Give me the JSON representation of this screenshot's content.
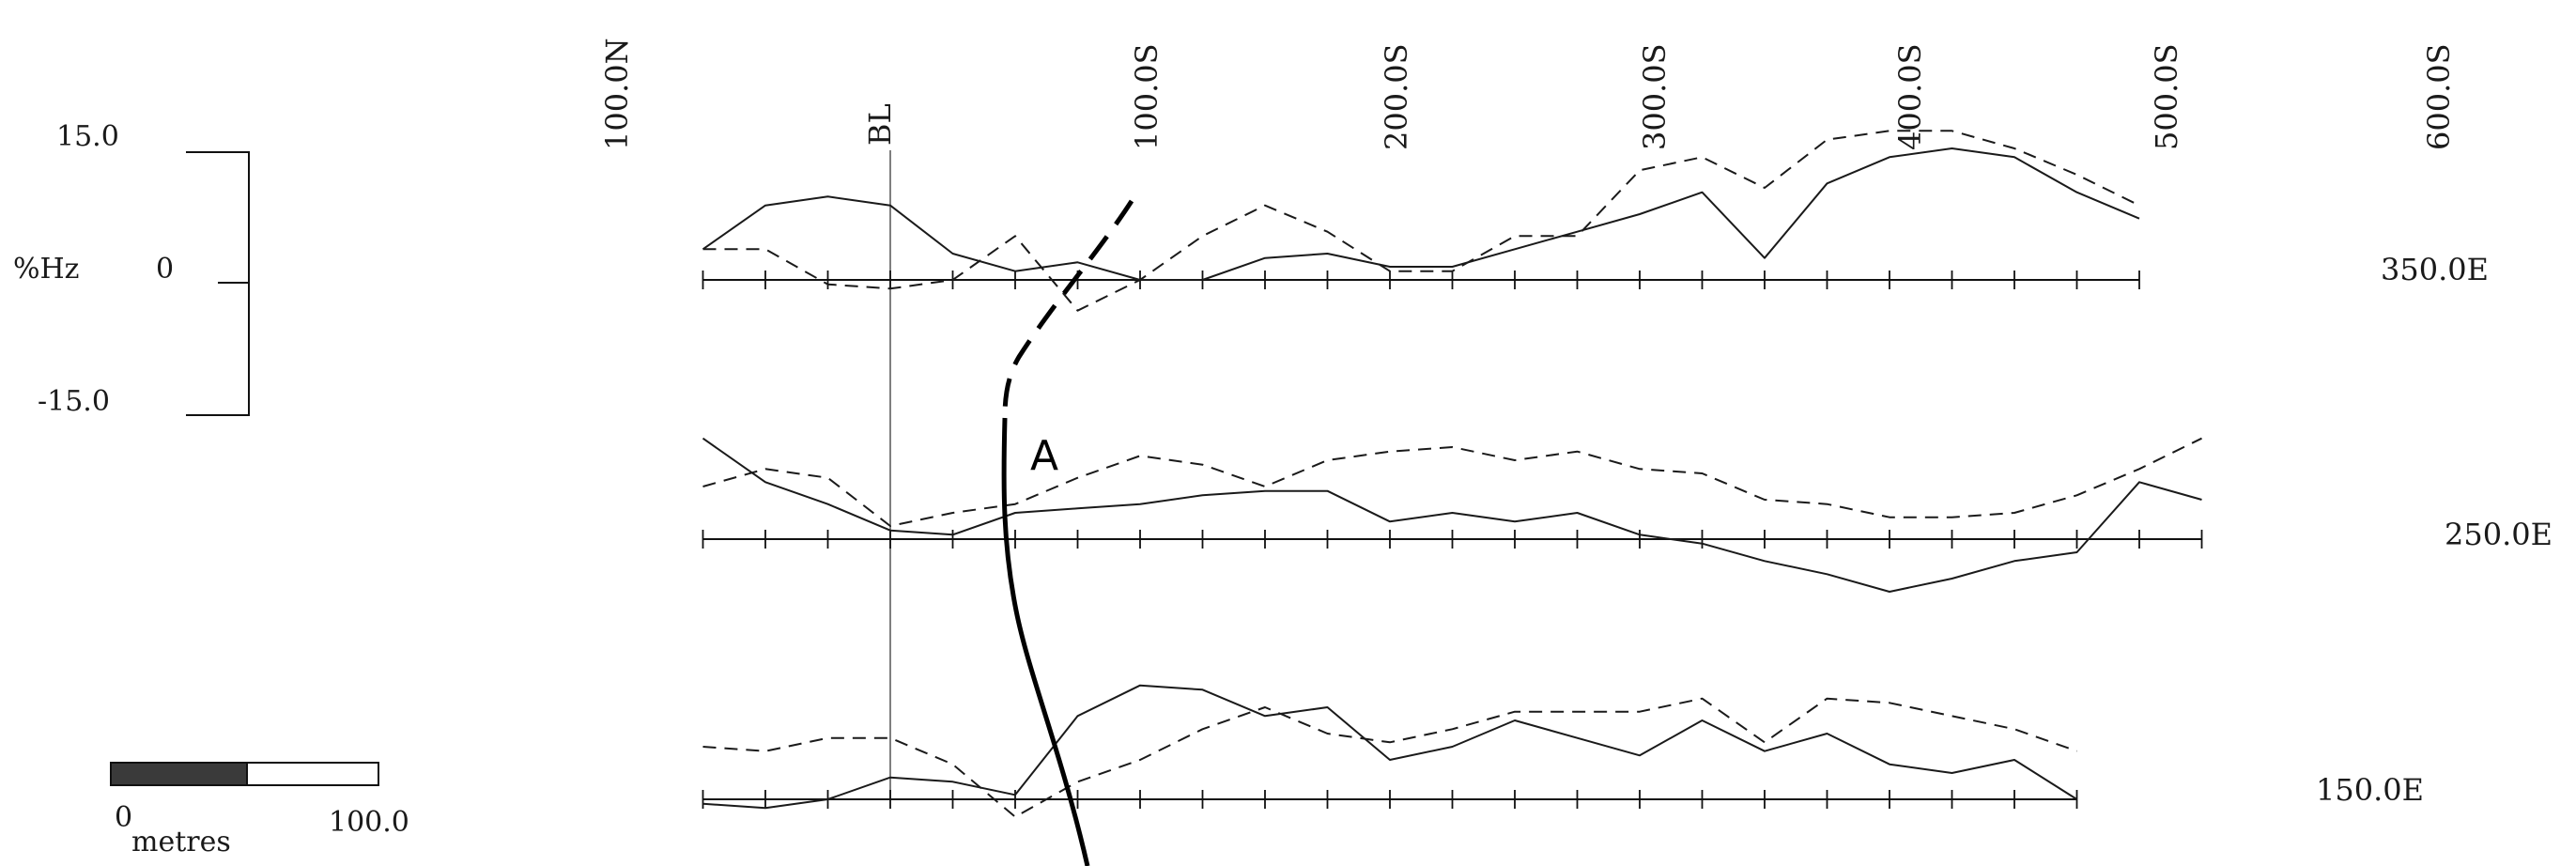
{
  "chart_data": {
    "type": "line",
    "y_scale": {
      "unit_label": "%Hz",
      "top_label": "15.0",
      "zero_label": "0",
      "bottom_label": "-15.0",
      "ylim": [
        -15,
        15
      ]
    },
    "station_labels": [
      "100.0N",
      "BL",
      "100.0S",
      "200.0S",
      "300.0S",
      "400.0S",
      "500.0S",
      "600.0S"
    ],
    "scale_bar": {
      "min_label": "0",
      "max_label": "100.0",
      "unit_label": "metres",
      "length_m": 100
    },
    "interpretation": {
      "label": "A"
    },
    "profiles": [
      {
        "line_label": "350.0E",
        "line_e": 350,
        "series": [
          {
            "style": "solid",
            "x": [
              -150,
              -100,
              -50,
              0,
              50,
              100,
              150,
              200,
              250,
              300,
              350,
              400,
              450,
              500,
              550,
              600,
              650,
              700,
              750,
              800,
              850,
              900,
              950,
              1000
            ],
            "y": [
              3.5,
              8.5,
              9.5,
              8.5,
              3,
              1,
              2,
              0,
              0,
              2.5,
              3,
              1.5,
              1.5,
              3.5,
              5.5,
              7.5,
              10,
              2.5,
              11,
              14,
              15,
              14,
              10,
              7
            ]
          },
          {
            "style": "dashed",
            "x": [
              -150,
              -100,
              -50,
              0,
              50,
              100,
              150,
              200,
              250,
              300,
              350,
              400,
              450,
              500,
              550,
              600,
              650,
              700,
              750,
              800,
              850,
              900,
              950,
              1000
            ],
            "y": [
              3.5,
              3.5,
              -0.5,
              -1,
              0,
              5,
              -3.5,
              0,
              5,
              8.5,
              5.5,
              1,
              1,
              5,
              5,
              12.5,
              14,
              10.5,
              16,
              17,
              17,
              15,
              12,
              8.5
            ]
          }
        ]
      },
      {
        "line_label": "250.0E",
        "line_e": 250,
        "series": [
          {
            "style": "solid",
            "x": [
              -150,
              -100,
              -50,
              0,
              50,
              100,
              150,
              200,
              250,
              300,
              350,
              400,
              450,
              500,
              550,
              600,
              650,
              700,
              750,
              800,
              850,
              900,
              950,
              1000,
              1050
            ],
            "y": [
              11.5,
              6.5,
              4,
              1,
              0.5,
              3,
              3.5,
              4,
              5,
              5.5,
              5.5,
              2,
              3,
              2,
              3,
              0.5,
              -0.5,
              -2.5,
              -4,
              -6,
              -4.5,
              -2.5,
              -1.5,
              6.5,
              4.5
            ]
          },
          {
            "style": "dashed",
            "x": [
              -150,
              -100,
              -50,
              0,
              50,
              100,
              150,
              200,
              250,
              300,
              350,
              400,
              450,
              500,
              550,
              600,
              650,
              700,
              750,
              800,
              850,
              900,
              950,
              1000,
              1050
            ],
            "y": [
              6,
              8,
              7,
              1.5,
              3,
              4,
              7,
              9.5,
              8.5,
              6,
              9,
              10,
              10.5,
              9,
              10,
              8,
              7.5,
              4.5,
              4,
              2.5,
              2.5,
              3,
              5,
              8,
              11.5
            ]
          }
        ]
      },
      {
        "line_label": "150.0E",
        "line_e": 150,
        "series": [
          {
            "style": "solid",
            "x": [
              -150,
              -100,
              -50,
              0,
              50,
              100,
              150,
              200,
              250,
              300,
              350,
              400,
              450,
              500,
              550,
              600,
              650,
              700,
              750,
              800,
              850,
              900,
              950
            ],
            "y": [
              -0.5,
              -1,
              0,
              2.5,
              2,
              0.5,
              9.5,
              13,
              12.5,
              9.5,
              10.5,
              4.5,
              6,
              9,
              7,
              5,
              9,
              5.5,
              7.5,
              4,
              3,
              4.5,
              0
            ]
          },
          {
            "style": "dashed",
            "x": [
              -150,
              -100,
              -50,
              0,
              50,
              100,
              150,
              200,
              250,
              300,
              350,
              400,
              450,
              500,
              550,
              600,
              650,
              700,
              750,
              800,
              850,
              900,
              950
            ],
            "y": [
              6,
              5.5,
              7,
              7,
              4,
              -2,
              2,
              4.5,
              8,
              10.5,
              7.5,
              6.5,
              8,
              10,
              10,
              10,
              11.5,
              6.5,
              11.5,
              11,
              9.5,
              8,
              5.5
            ]
          }
        ]
      }
    ]
  }
}
